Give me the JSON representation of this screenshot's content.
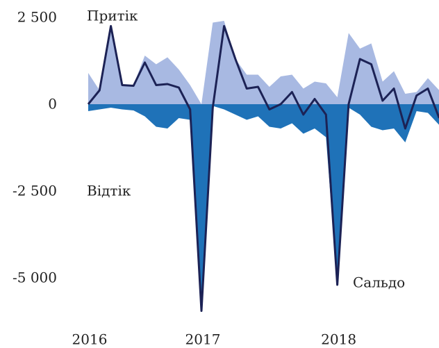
{
  "chart_data": {
    "type": "area-line",
    "categories": [
      "2016",
      null,
      null,
      null,
      null,
      null,
      null,
      null,
      null,
      null,
      "2017",
      null,
      null,
      null,
      null,
      null,
      null,
      null,
      null,
      null,
      null,
      null,
      "2018",
      null,
      null,
      null,
      null,
      null,
      null,
      null,
      null,
      null
    ],
    "series": [
      {
        "name": "Притік",
        "color": "#a8b9e2",
        "values": [
          900,
          400,
          2250,
          550,
          550,
          1400,
          1150,
          1350,
          1000,
          550,
          0,
          2350,
          2400,
          1300,
          850,
          850,
          500,
          800,
          850,
          450,
          650,
          600,
          200,
          2050,
          1600,
          1750,
          650,
          950,
          300,
          350,
          750,
          400
        ]
      },
      {
        "name": "Відтік",
        "color": "#1f72b8",
        "values": [
          -200,
          -150,
          -100,
          -150,
          -180,
          -350,
          -650,
          -700,
          -400,
          -450,
          -6000,
          -50,
          -150,
          -300,
          -450,
          -350,
          -650,
          -700,
          -550,
          -850,
          -700,
          -950,
          -5200,
          -100,
          -300,
          -650,
          -750,
          -700,
          -1100,
          -200,
          -250,
          -600
        ]
      },
      {
        "name": "Сальдо",
        "color": "#1c2255",
        "values": [
          0,
          400,
          2250,
          550,
          530,
          1200,
          550,
          580,
          480,
          -150,
          -5950,
          -100,
          2250,
          1300,
          450,
          500,
          -150,
          0,
          350,
          -300,
          150,
          -300,
          -5200,
          0,
          1300,
          1150,
          100,
          450,
          -700,
          250,
          450,
          -400
        ]
      }
    ],
    "ylim": [
      -6000,
      2700
    ],
    "yticks": [
      {
        "value": 2500,
        "label": "2 500"
      },
      0,
      {
        "value": -2500,
        "label": "-2 500"
      },
      {
        "value": -5000,
        "label": "-5 000"
      }
    ]
  }
}
